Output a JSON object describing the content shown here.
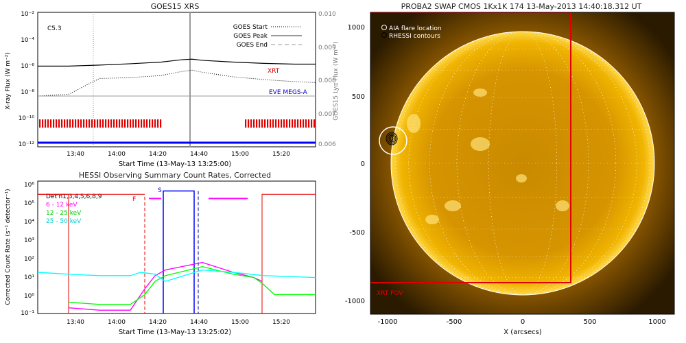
{
  "goes": {
    "title": "GOES15 XRS",
    "ylabel_left": "X-ray Flux (W m⁻²)",
    "ylabel_right": "GOES15 Lyα Flux (W m⁻²)",
    "xlabel": "Start Time (13-May-13 13:25:00)",
    "flare_class": "C5.3",
    "legend": [
      "GOES Start",
      "GOES Peak",
      "GOES End"
    ],
    "xrt_label": "XRT",
    "eve_label": "EVE MEGS-A",
    "left_ticks": [
      "10⁻²",
      "10⁻⁴",
      "10⁻⁶",
      "10⁻⁸",
      "10⁻¹⁰",
      "10⁻¹²"
    ],
    "right_ticks": [
      "0.010",
      "0.009",
      "0.008",
      "0.007",
      "0.006"
    ],
    "time_ticks": [
      "13:40",
      "14:00",
      "14:20",
      "14:40",
      "15:00",
      "15:20"
    ]
  },
  "rhessi": {
    "title": "HESSI Observing Summary Count Rates, Corrected",
    "ylabel": "Corrected Count Rate (s⁻¹ detector⁻¹)",
    "xlabel": "Start Time (13-May-13 13:25:02)",
    "detectors": "Det'n1,3,4,5,6,8,9",
    "bands": [
      {
        "name": "6 - 12 keV",
        "color": "#ff00ff"
      },
      {
        "name": "12 - 25 keV",
        "color": "#00ff00"
      },
      {
        "name": "25 - 50 keV",
        "color": "#00ffff"
      }
    ],
    "y_ticks": [
      "10⁶",
      "10⁵",
      "10⁴",
      "10³",
      "10²",
      "10¹",
      "10⁰",
      "10⁻¹"
    ],
    "time_ticks": [
      "13:40",
      "14:00",
      "14:20",
      "14:40",
      "15:00",
      "15:20"
    ],
    "marker_F": "F",
    "marker_S": "S"
  },
  "swap": {
    "title": "PROBA2 SWAP CMOS 1Kx1K 174 13-May-2013 14:40:18.312 UT",
    "legend": [
      "AIA flare location",
      "RHESSI contours"
    ],
    "xrt_fov": "XRT FOV",
    "xlabel": "X (arcsecs)",
    "x_ticks": [
      "-1000",
      "-500",
      "0",
      "500",
      "1000"
    ],
    "y_ticks": [
      "1000",
      "500",
      "0",
      "-500",
      "-1000"
    ]
  },
  "chart_data": [
    {
      "type": "line",
      "title": "GOES15 XRS",
      "xlabel": "Start Time (13-May-13 13:25:00)",
      "ylabel": "X-ray Flux (W m⁻²)",
      "xlim": [
        "13:25",
        "15:40"
      ],
      "ylim": [
        1e-12,
        0.01
      ],
      "log_y": true,
      "series": [
        {
          "name": "",
          "x": [
            "13:25",
            "13:40",
            "13:55",
            "14:10",
            "14:25",
            "14:35",
            "14:40",
            "14:45",
            "15:00",
            "15:15",
            "15:30",
            "15:40"
          ],
          "values": [
            1e-06,
            1e-06,
            1.2e-06,
            1.5e-06,
            2e-06,
            3e-06,
            3.3e-06,
            2.7e-06,
            2e-06,
            1.6e-06,
            1.4e-06,
            1.4e-06
          ]
        },
        {
          "name": "",
          "x": [
            "13:25",
            "13:40",
            "13:45",
            "13:55",
            "14:10",
            "14:25",
            "14:35",
            "14:40",
            "14:45",
            "15:00",
            "15:15",
            "15:30",
            "15:40"
          ],
          "values": [
            6e-09,
            8e-09,
            2e-08,
            1.2e-07,
            1.4e-07,
            2e-07,
            4e-07,
            5e-07,
            3.5e-07,
            1.6e-07,
            1e-07,
            7e-08,
            6e-08
          ]
        },
        {
          "name": "",
          "x": [
            "13:25",
            "15:40"
          ],
          "values": [
            6e-09,
            6e-09
          ]
        }
      ],
      "events": {
        "goes_start": "13:52",
        "goes_peak": "14:39",
        "goes_end": ""
      },
      "xrt_coverage": [
        [
          "13:25",
          "14:25"
        ],
        [
          "15:05",
          "15:40"
        ]
      ]
    },
    {
      "type": "line",
      "title": "HESSI Observing Summary Count Rates, Corrected",
      "xlabel": "Start Time (13-May-13 13:25:02)",
      "ylabel": "Corrected Count Rate (s⁻¹ detector⁻¹)",
      "xlim": [
        "13:25",
        "15:40"
      ],
      "ylim": [
        0.1,
        1000000.0
      ],
      "log_y": true,
      "series": [
        {
          "name": "6 - 12 keV",
          "x": [
            "13:40",
            "13:55",
            "14:10",
            "14:17",
            "14:22",
            "14:27",
            "14:45",
            "15:00",
            "15:10",
            "15:14"
          ],
          "values": [
            0.2,
            0.15,
            0.15,
            2,
            10,
            20,
            50,
            15,
            8,
            5
          ]
        },
        {
          "name": "12 - 25 keV",
          "x": [
            "13:40",
            "13:55",
            "14:10",
            "14:17",
            "14:22",
            "14:27",
            "14:45",
            "15:00",
            "15:10",
            "15:14",
            "15:20",
            "15:40"
          ],
          "values": [
            0.4,
            0.3,
            0.3,
            1,
            5,
            10,
            30,
            12,
            8,
            4,
            1,
            1
          ]
        },
        {
          "name": "25 - 50 keV",
          "x": [
            "13:25",
            "13:40",
            "13:55",
            "14:10",
            "14:15",
            "14:22",
            "14:27",
            "14:45",
            "15:00",
            "15:15",
            "15:40"
          ],
          "values": [
            15,
            12,
            10,
            10,
            15,
            12,
            5,
            20,
            15,
            10,
            8
          ]
        }
      ],
      "events": {
        "F": "14:17",
        "S": "14:26",
        "end": "14:43"
      }
    }
  ]
}
